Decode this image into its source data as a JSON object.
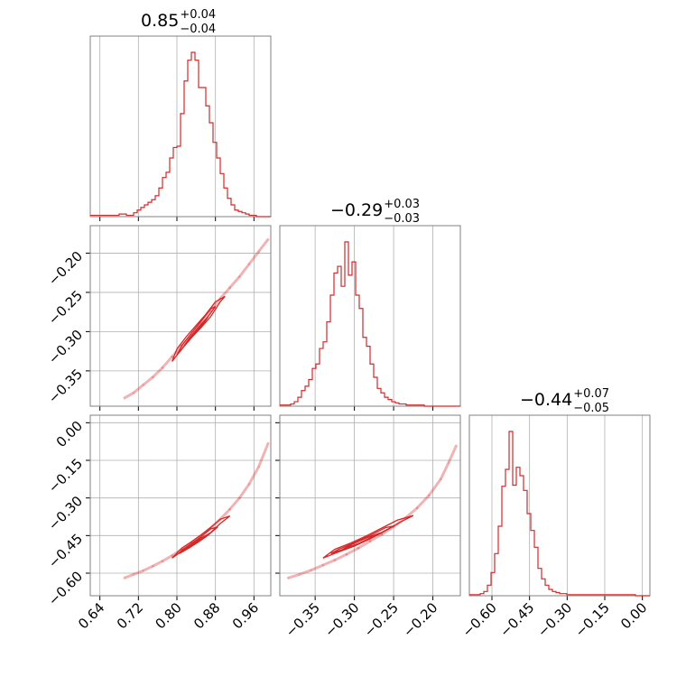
{
  "chart_data": [
    {
      "panel": "hist-p1",
      "type": "histogram",
      "title": {
        "value": "0.85",
        "plus": "+0.04",
        "minus": "−0.04"
      },
      "xlim": [
        0.62,
        0.995
      ],
      "bin_start": 0.62,
      "bin_width": 0.0075,
      "counts": [
        1,
        1,
        1,
        1,
        1,
        1,
        1,
        1,
        2,
        2,
        1,
        1,
        3,
        5,
        7,
        9,
        11,
        13,
        16,
        22,
        30,
        34,
        45,
        53,
        54,
        79,
        104,
        120,
        126,
        120,
        99,
        99,
        85,
        72,
        57,
        45,
        33,
        22,
        14,
        9,
        5,
        4,
        3,
        2,
        1,
        1,
        0,
        0,
        0,
        0
      ],
      "xticks": [
        0.64,
        0.72,
        0.8,
        0.88,
        0.96
      ],
      "xtick_labels": [
        "0.64",
        "0.72",
        "0.80",
        "0.88",
        "0.96"
      ],
      "color": "#d62728"
    },
    {
      "panel": "hist-p2",
      "type": "histogram",
      "title": {
        "value": "−0.29",
        "plus": "+0.03",
        "minus": "−0.03"
      },
      "xlim": [
        -0.395,
        -0.165
      ],
      "bin_start": -0.395,
      "bin_width": 0.0046,
      "counts": [
        1,
        1,
        1,
        2,
        4,
        8,
        14,
        18,
        24,
        34,
        38,
        52,
        58,
        76,
        100,
        120,
        126,
        108,
        148,
        118,
        130,
        100,
        88,
        62,
        54,
        38,
        26,
        16,
        12,
        8,
        6,
        4,
        3,
        2,
        2,
        1,
        1,
        1,
        1,
        1,
        0,
        0,
        0,
        0,
        0,
        0,
        0,
        0,
        0,
        0
      ],
      "xticks": [
        -0.35,
        -0.3,
        -0.25,
        -0.2
      ],
      "xtick_labels": [
        "−0.35",
        "−0.30",
        "−0.25",
        "−0.20"
      ],
      "color": "#d62728"
    },
    {
      "panel": "hist-p3",
      "type": "histogram",
      "title": {
        "value": "−0.44",
        "plus": "+0.07",
        "minus": "−0.05"
      },
      "xlim": [
        -0.69,
        0.03
      ],
      "bin_start": -0.69,
      "bin_width": 0.0144,
      "counts": [
        1,
        1,
        1,
        2,
        4,
        10,
        22,
        40,
        66,
        104,
        120,
        156,
        105,
        122,
        114,
        100,
        78,
        62,
        46,
        26,
        16,
        10,
        6,
        4,
        3,
        2,
        2,
        1,
        1,
        1,
        1,
        1,
        1,
        1,
        1,
        1,
        1,
        1,
        1,
        1,
        1,
        1,
        1,
        1,
        1,
        1,
        0,
        0,
        0,
        0
      ],
      "xticks": [
        -0.6,
        -0.45,
        -0.3,
        -0.15,
        0.0
      ],
      "xtick_labels": [
        "−0.60",
        "−0.45",
        "−0.30",
        "−0.15",
        "0.00"
      ],
      "color": "#d62728"
    },
    {
      "panel": "scatter-p1-p2",
      "type": "scatter",
      "x_param": 1,
      "y_param": 2,
      "xlim": [
        0.62,
        0.995
      ],
      "ylim": [
        -0.395,
        -0.165
      ],
      "yticks": [
        -0.35,
        -0.3,
        -0.25,
        -0.2
      ],
      "ytick_labels": [
        "−0.35",
        "−0.30",
        "−0.25",
        "−0.20"
      ],
      "points": [
        [
          0.69,
          -0.385
        ],
        [
          0.71,
          -0.378
        ],
        [
          0.73,
          -0.368
        ],
        [
          0.75,
          -0.358
        ],
        [
          0.77,
          -0.346
        ],
        [
          0.79,
          -0.332
        ],
        [
          0.81,
          -0.318
        ],
        [
          0.83,
          -0.304
        ],
        [
          0.85,
          -0.29
        ],
        [
          0.87,
          -0.274
        ],
        [
          0.89,
          -0.258
        ],
        [
          0.91,
          -0.244
        ],
        [
          0.93,
          -0.23
        ],
        [
          0.95,
          -0.214
        ],
        [
          0.97,
          -0.198
        ],
        [
          0.99,
          -0.182
        ]
      ],
      "contours": [
        [
          [
            0.79,
            -0.338
          ],
          [
            0.81,
            -0.322
          ],
          [
            0.83,
            -0.308
          ],
          [
            0.85,
            -0.295
          ],
          [
            0.87,
            -0.281
          ],
          [
            0.89,
            -0.262
          ],
          [
            0.9,
            -0.255
          ],
          [
            0.88,
            -0.262
          ],
          [
            0.86,
            -0.278
          ],
          [
            0.84,
            -0.292
          ],
          [
            0.82,
            -0.306
          ],
          [
            0.8,
            -0.322
          ],
          [
            0.79,
            -0.338
          ]
        ],
        [
          [
            0.8,
            -0.33
          ],
          [
            0.82,
            -0.315
          ],
          [
            0.84,
            -0.3
          ],
          [
            0.86,
            -0.285
          ],
          [
            0.88,
            -0.268
          ],
          [
            0.87,
            -0.271
          ],
          [
            0.85,
            -0.287
          ],
          [
            0.83,
            -0.302
          ],
          [
            0.81,
            -0.318
          ],
          [
            0.8,
            -0.33
          ]
        ],
        [
          [
            0.815,
            -0.318
          ],
          [
            0.835,
            -0.304
          ],
          [
            0.855,
            -0.29
          ],
          [
            0.865,
            -0.281
          ],
          [
            0.845,
            -0.294
          ],
          [
            0.825,
            -0.309
          ],
          [
            0.815,
            -0.318
          ]
        ]
      ],
      "color": "#d62728"
    },
    {
      "panel": "scatter-p1-p3",
      "type": "scatter",
      "x_param": 1,
      "y_param": 3,
      "xlim": [
        0.62,
        0.995
      ],
      "ylim": [
        -0.69,
        0.03
      ],
      "yticks": [
        -0.6,
        -0.45,
        -0.3,
        -0.15,
        0.0
      ],
      "ytick_labels": [
        "−0.60",
        "−0.45",
        "−0.30",
        "−0.15",
        "0.00"
      ],
      "xticks": [
        0.64,
        0.72,
        0.8,
        0.88,
        0.96
      ],
      "xtick_labels": [
        "0.64",
        "0.72",
        "0.80",
        "0.88",
        "0.96"
      ],
      "points": [
        [
          0.69,
          -0.62
        ],
        [
          0.71,
          -0.605
        ],
        [
          0.73,
          -0.59
        ],
        [
          0.75,
          -0.572
        ],
        [
          0.77,
          -0.552
        ],
        [
          0.79,
          -0.53
        ],
        [
          0.81,
          -0.505
        ],
        [
          0.83,
          -0.478
        ],
        [
          0.85,
          -0.45
        ],
        [
          0.87,
          -0.42
        ],
        [
          0.89,
          -0.385
        ],
        [
          0.91,
          -0.345
        ],
        [
          0.93,
          -0.3
        ],
        [
          0.95,
          -0.245
        ],
        [
          0.97,
          -0.175
        ],
        [
          0.99,
          -0.08
        ]
      ],
      "contours": [
        [
          [
            0.79,
            -0.54
          ],
          [
            0.81,
            -0.512
          ],
          [
            0.83,
            -0.49
          ],
          [
            0.85,
            -0.462
          ],
          [
            0.87,
            -0.438
          ],
          [
            0.89,
            -0.402
          ],
          [
            0.91,
            -0.372
          ],
          [
            0.89,
            -0.385
          ],
          [
            0.87,
            -0.418
          ],
          [
            0.85,
            -0.448
          ],
          [
            0.83,
            -0.475
          ],
          [
            0.81,
            -0.5
          ],
          [
            0.79,
            -0.54
          ]
        ],
        [
          [
            0.805,
            -0.522
          ],
          [
            0.825,
            -0.5
          ],
          [
            0.845,
            -0.475
          ],
          [
            0.865,
            -0.448
          ],
          [
            0.885,
            -0.415
          ],
          [
            0.87,
            -0.424
          ],
          [
            0.85,
            -0.455
          ],
          [
            0.83,
            -0.482
          ],
          [
            0.81,
            -0.508
          ],
          [
            0.805,
            -0.522
          ]
        ],
        [
          [
            0.82,
            -0.5
          ],
          [
            0.84,
            -0.48
          ],
          [
            0.86,
            -0.455
          ],
          [
            0.865,
            -0.445
          ],
          [
            0.85,
            -0.46
          ],
          [
            0.83,
            -0.485
          ],
          [
            0.82,
            -0.5
          ]
        ]
      ],
      "color": "#d62728"
    },
    {
      "panel": "scatter-p2-p3",
      "type": "scatter",
      "x_param": 2,
      "y_param": 3,
      "xlim": [
        -0.395,
        -0.165
      ],
      "ylim": [
        -0.69,
        0.03
      ],
      "xticks": [
        -0.35,
        -0.3,
        -0.25,
        -0.2
      ],
      "xtick_labels": [
        "−0.35",
        "−0.30",
        "−0.25",
        "−0.20"
      ],
      "points": [
        [
          -0.385,
          -0.62
        ],
        [
          -0.37,
          -0.605
        ],
        [
          -0.355,
          -0.588
        ],
        [
          -0.34,
          -0.568
        ],
        [
          -0.325,
          -0.548
        ],
        [
          -0.31,
          -0.525
        ],
        [
          -0.295,
          -0.5
        ],
        [
          -0.28,
          -0.472
        ],
        [
          -0.265,
          -0.445
        ],
        [
          -0.25,
          -0.414
        ],
        [
          -0.235,
          -0.38
        ],
        [
          -0.22,
          -0.34
        ],
        [
          -0.205,
          -0.29
        ],
        [
          -0.19,
          -0.225
        ],
        [
          -0.18,
          -0.16
        ],
        [
          -0.17,
          -0.09
        ]
      ],
      "contours": [
        [
          [
            -0.34,
            -0.54
          ],
          [
            -0.32,
            -0.515
          ],
          [
            -0.3,
            -0.492
          ],
          [
            -0.28,
            -0.463
          ],
          [
            -0.26,
            -0.43
          ],
          [
            -0.24,
            -0.394
          ],
          [
            -0.225,
            -0.37
          ],
          [
            -0.245,
            -0.388
          ],
          [
            -0.265,
            -0.42
          ],
          [
            -0.285,
            -0.452
          ],
          [
            -0.305,
            -0.48
          ],
          [
            -0.325,
            -0.505
          ],
          [
            -0.34,
            -0.54
          ]
        ],
        [
          [
            -0.33,
            -0.522
          ],
          [
            -0.31,
            -0.5
          ],
          [
            -0.29,
            -0.476
          ],
          [
            -0.27,
            -0.445
          ],
          [
            -0.25,
            -0.412
          ],
          [
            -0.26,
            -0.418
          ],
          [
            -0.28,
            -0.45
          ],
          [
            -0.3,
            -0.478
          ],
          [
            -0.32,
            -0.505
          ],
          [
            -0.33,
            -0.522
          ]
        ],
        [
          [
            -0.315,
            -0.505
          ],
          [
            -0.295,
            -0.482
          ],
          [
            -0.275,
            -0.452
          ],
          [
            -0.268,
            -0.44
          ],
          [
            -0.285,
            -0.46
          ],
          [
            -0.305,
            -0.488
          ],
          [
            -0.315,
            -0.505
          ]
        ]
      ],
      "color": "#d62728"
    }
  ]
}
